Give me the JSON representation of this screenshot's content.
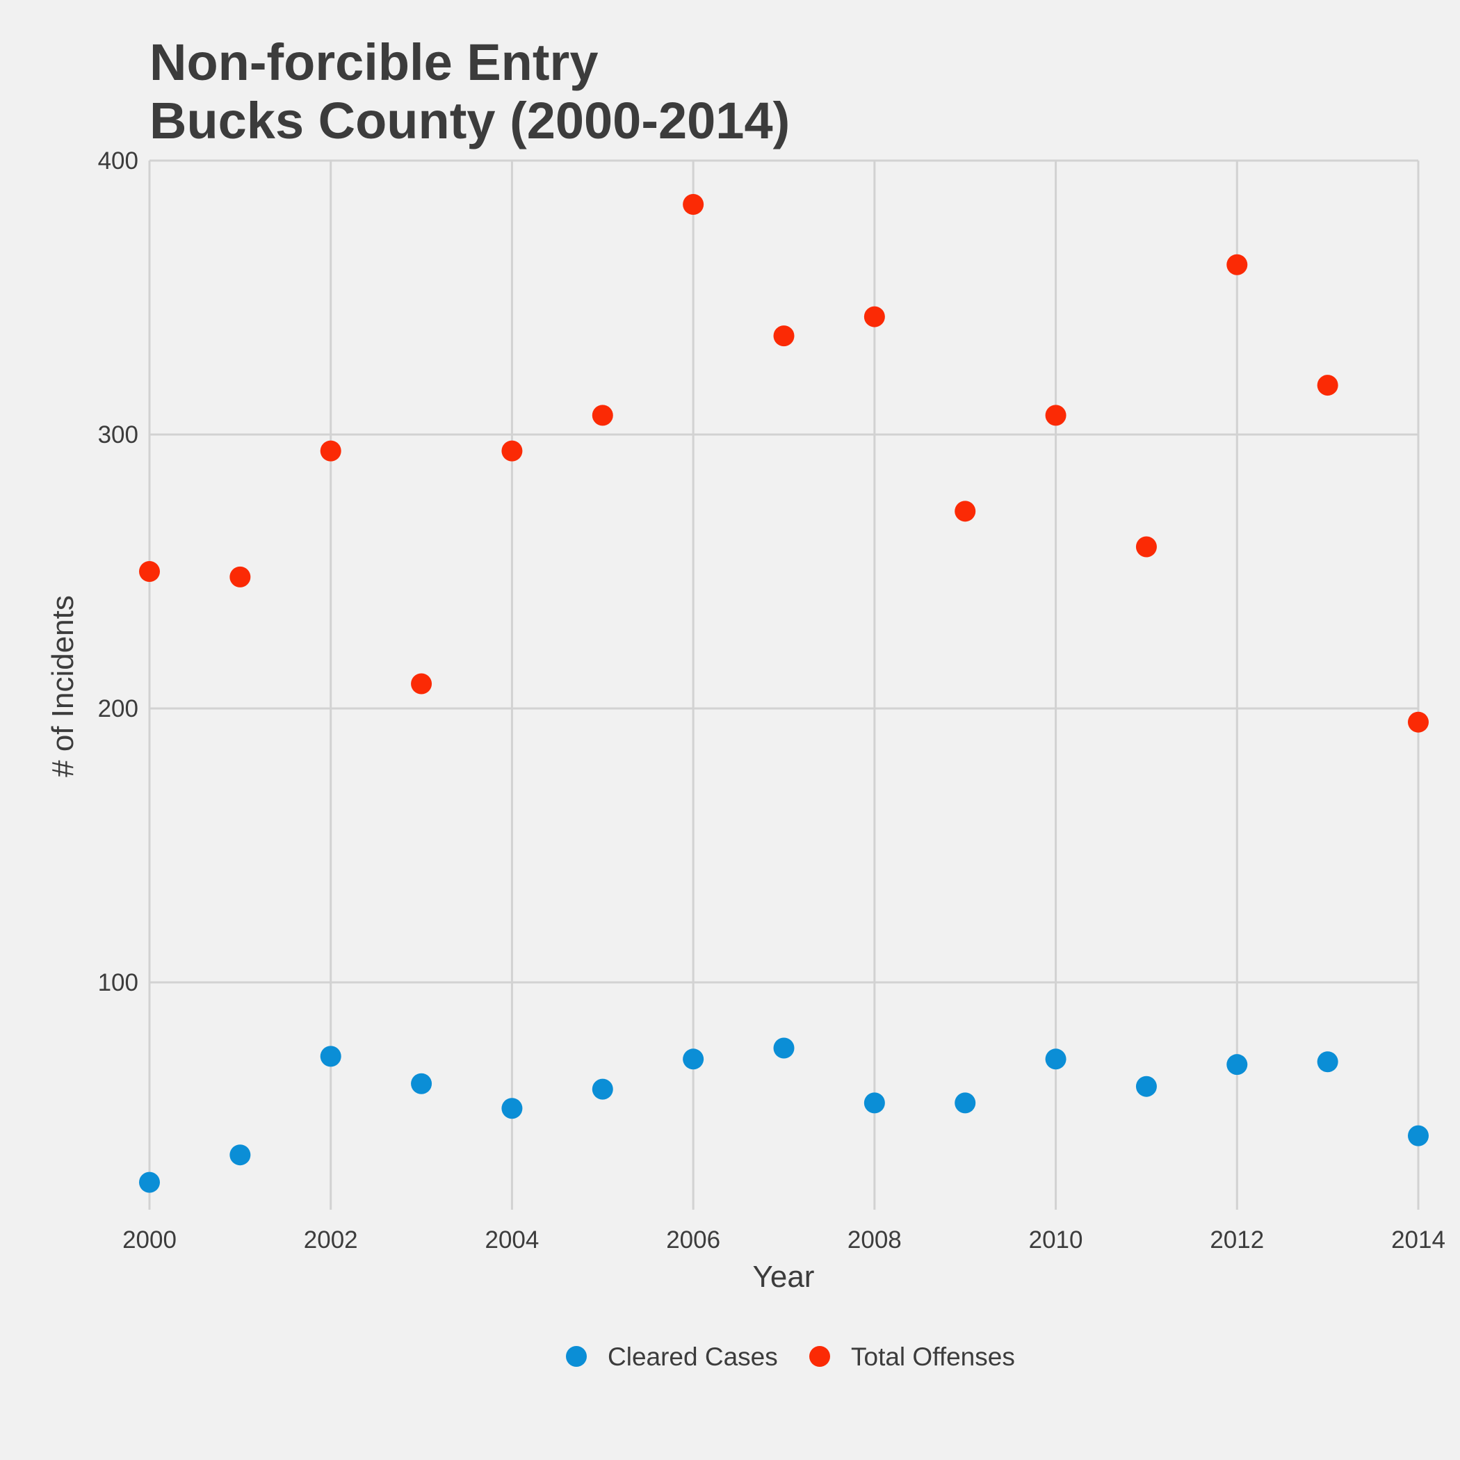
{
  "chart_data": {
    "type": "scatter",
    "title_lines": [
      "Non-forcible Entry",
      "Bucks County (2000-2014)"
    ],
    "xlabel": "Year",
    "ylabel": "# of Incidents",
    "x": [
      2000,
      2001,
      2002,
      2003,
      2004,
      2005,
      2006,
      2007,
      2008,
      2009,
      2010,
      2011,
      2012,
      2013,
      2014
    ],
    "xlim": [
      2000,
      2014
    ],
    "ylim": [
      17,
      400
    ],
    "xticks": [
      2000,
      2002,
      2004,
      2006,
      2008,
      2010,
      2012,
      2014
    ],
    "yticks": [
      100,
      200,
      300,
      400
    ],
    "grid": true,
    "legend_position": "bottom",
    "series": [
      {
        "name": "Cleared Cases",
        "color": "#0b8ed6",
        "values": [
          27,
          37,
          73,
          63,
          54,
          61,
          72,
          76,
          56,
          56,
          72,
          62,
          70,
          71,
          44
        ]
      },
      {
        "name": "Total Offenses",
        "color": "#fb2a05",
        "values": [
          250,
          248,
          294,
          209,
          294,
          307,
          384,
          336,
          343,
          272,
          307,
          259,
          362,
          318,
          195
        ]
      }
    ]
  }
}
